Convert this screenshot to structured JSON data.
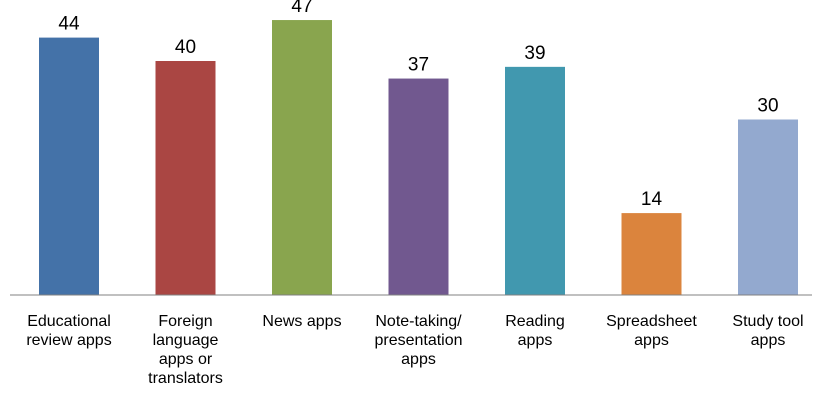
{
  "chart_data": {
    "type": "bar",
    "categories": [
      [
        "Educational",
        "review apps"
      ],
      [
        "Foreign",
        "language",
        "apps or",
        "translators"
      ],
      [
        "News apps"
      ],
      [
        "Note-taking/",
        "presentation",
        "apps"
      ],
      [
        "Reading",
        "apps"
      ],
      [
        "Spreadsheet",
        "apps"
      ],
      [
        "Study tool",
        "apps"
      ]
    ],
    "values": [
      44,
      40,
      47,
      37,
      39,
      14,
      30
    ],
    "colors": [
      "#4472a8",
      "#aa4643",
      "#89a54e",
      "#71588f",
      "#4198af",
      "#db843d",
      "#93a9cf"
    ],
    "ylim": [
      0,
      50
    ],
    "grid": false,
    "legend": "none",
    "title": "",
    "xlabel": "",
    "ylabel": ""
  }
}
